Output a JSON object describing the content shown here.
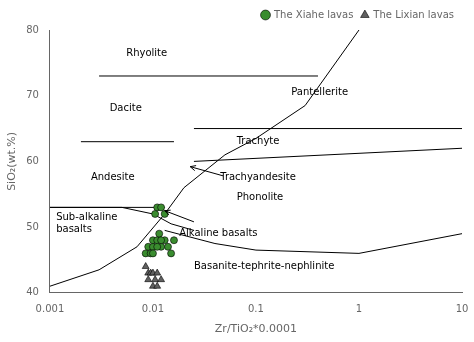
{
  "chart_data": {
    "type": "scatter",
    "xlabel": "Zr/TiO₂*0.0001",
    "ylabel": "SiO₂(wt.%)",
    "log": "x",
    "xlim": [
      0.001,
      10
    ],
    "xticks": [
      0.001,
      0.01,
      0.1,
      1,
      10
    ],
    "ylim": [
      40,
      80
    ],
    "yticks": [
      40,
      50,
      60,
      70,
      80
    ],
    "grid": false,
    "legend": "upper right",
    "series": [
      {
        "name": "The Xiahe lavas",
        "color": "#3a8c2f",
        "edge_color": "#000000",
        "marker": "circle",
        "x": [
          0.0085,
          0.009,
          0.0095,
          0.01,
          0.01,
          0.0105,
          0.011,
          0.011,
          0.0115,
          0.012,
          0.012,
          0.013,
          0.013,
          0.014,
          0.015,
          0.016,
          0.01,
          0.011,
          0.012
        ],
        "values": [
          46,
          47,
          46,
          47,
          48,
          52,
          48,
          53,
          49,
          47,
          53,
          48,
          52,
          47,
          46,
          48,
          46,
          47,
          48
        ]
      },
      {
        "name": "The Lixian lavas",
        "color": "#606060",
        "edge_color": "#000000",
        "marker": "triangle",
        "x": [
          0.0085,
          0.009,
          0.009,
          0.0095,
          0.01,
          0.01,
          0.0105,
          0.011,
          0.011,
          0.012
        ],
        "values": [
          44,
          43,
          42,
          43,
          41,
          43,
          42,
          43,
          41,
          42
        ]
      }
    ],
    "boundary_lines": [
      {
        "x": [
          0.003,
          0.4
        ],
        "y": [
          73.0,
          73.0
        ],
        "color": "#000000"
      },
      {
        "x": [
          0.002,
          0.016
        ],
        "y": [
          63.0,
          63.0
        ],
        "color": "#000000"
      },
      {
        "x": [
          0.025,
          10
        ],
        "y": [
          65.0,
          65.0
        ],
        "color": "#000000"
      },
      {
        "x": [
          0.001,
          0.013
        ],
        "y": [
          53.0,
          53.0
        ],
        "color": "#000000"
      },
      {
        "x": [
          0.025,
          10
        ],
        "y": [
          60.0,
          62.0
        ],
        "color": "#000000"
      },
      {
        "x": [
          0.001,
          0.003,
          0.007,
          0.013,
          0.02,
          0.05,
          0.1,
          0.3,
          1.0
        ],
        "y": [
          41.0,
          43.5,
          47.0,
          52.0,
          56.0,
          61.0,
          63.5,
          68.5,
          80.0
        ],
        "color": "#000000"
      },
      {
        "x": [
          0.001,
          0.005,
          0.01,
          0.015,
          0.025
        ],
        "y": [
          53.0,
          53.0,
          52.0,
          50.5,
          49.5
        ],
        "color": "#000000"
      },
      {
        "x": [
          0.013,
          0.04,
          0.1,
          1.0,
          10
        ],
        "y": [
          49.5,
          47.5,
          46.5,
          46.0,
          49.0
        ],
        "color": "#000000"
      }
    ],
    "annotations": [
      {
        "text": "Rhyolite",
        "x": 0.0055,
        "y": 76.5
      },
      {
        "text": "Dacite",
        "x": 0.0038,
        "y": 68
      },
      {
        "text": "Andesite",
        "x": 0.0025,
        "y": 57.5
      },
      {
        "text": "Sub-alkaline\nbasalts",
        "x": 0.00115,
        "y": 50.5
      },
      {
        "text": "Pantellerite",
        "x": 0.22,
        "y": 70.5
      },
      {
        "text": "Trachyte",
        "x": 0.065,
        "y": 63
      },
      {
        "text": "Trachyandesite",
        "x": 0.045,
        "y": 57.5
      },
      {
        "text": "Phonolite",
        "x": 0.065,
        "y": 54.5
      },
      {
        "text": "Alkaline basalts",
        "x": 0.018,
        "y": 49
      },
      {
        "text": "Basanite-tephrite-nephlinite",
        "x": 0.025,
        "y": 44
      }
    ],
    "arrows": [
      {
        "from": [
          0.048,
          57.8
        ],
        "to": [
          0.023,
          59.2
        ]
      },
      {
        "from": [
          0.025,
          50.8
        ],
        "to": [
          0.013,
          52.5
        ]
      }
    ]
  }
}
